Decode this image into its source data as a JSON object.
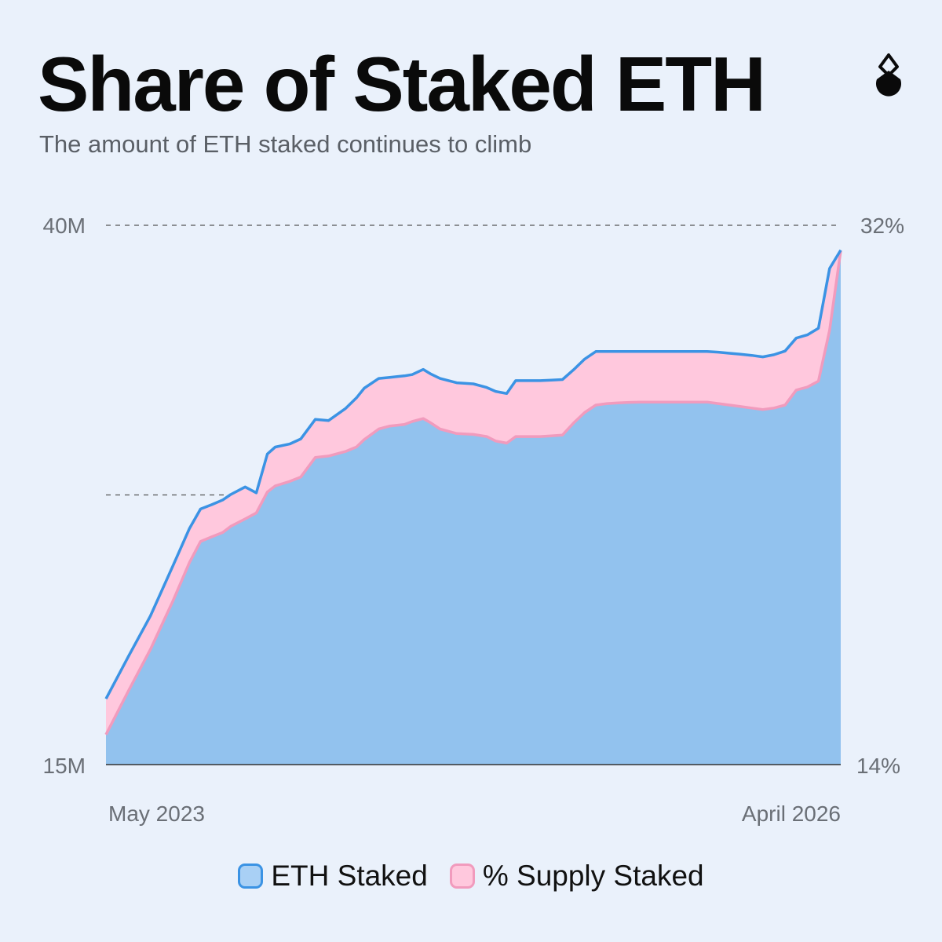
{
  "title": "Share of Staked ETH",
  "subtitle": "The amount of ETH staked continues to climb",
  "logo": {
    "icon": "staking-drop-icon"
  },
  "colors": {
    "background": "#eaf1fb",
    "eth_fill": "#92c2ee",
    "eth_line": "#3b93e4",
    "supply_fill": "#ffc8dd",
    "supply_line": "#f19bbd",
    "gridline": "#555555",
    "baseline": "#333333"
  },
  "chart_data": {
    "type": "area",
    "title": "Share of Staked ETH",
    "subtitle": "The amount of ETH staked continues to climb",
    "x_start_label": "May 2023",
    "x_end_label": "April 2026",
    "y_left": {
      "min": 15,
      "max": 40,
      "tick_labels": [
        "40M",
        "15M"
      ],
      "unit": "M ETH"
    },
    "y_right": {
      "min": 14,
      "max": 32,
      "tick_labels": [
        "32%",
        "14%"
      ],
      "unit": "%"
    },
    "gridlines_left": [
      40,
      27.5
    ],
    "x": [
      0,
      2,
      4,
      6,
      7.5,
      8.5,
      9.5,
      10.5,
      11.2,
      12.5,
      13.5,
      14.5,
      15.2,
      16.5,
      17.5,
      18.8,
      20,
      21.5,
      22.5,
      23.2,
      24.5,
      25.5,
      26.8,
      27.5,
      28.5,
      29.2,
      30,
      31.5,
      33,
      34.2,
      35,
      36,
      36.8,
      38,
      39,
      40,
      41,
      42,
      43,
      44,
      45,
      46,
      47,
      48,
      49,
      50,
      51,
      52,
      53,
      54,
      55,
      56,
      57,
      58,
      59,
      60,
      61,
      62,
      63,
      64,
      65,
      66
    ],
    "series": [
      {
        "name": "ETH Staked",
        "axis": "left",
        "values": [
          18.05,
          20.0,
          21.9,
          24.2,
          25.95,
          26.85,
          27.05,
          27.27,
          27.52,
          27.87,
          27.6,
          29.4,
          29.72,
          29.86,
          30.1,
          31.0,
          30.95,
          31.5,
          32.0,
          32.45,
          32.9,
          32.95,
          33.02,
          33.08,
          33.32,
          33.1,
          32.9,
          32.7,
          32.65,
          32.48,
          32.3,
          32.2,
          32.8,
          32.8,
          32.8,
          32.82,
          32.85,
          33.3,
          33.8,
          34.15,
          34.15,
          34.15,
          34.15,
          34.15,
          34.15,
          34.15,
          34.15,
          34.15,
          34.15,
          34.15,
          34.12,
          34.07,
          34.02,
          33.97,
          33.9,
          34.0,
          34.17,
          34.77,
          34.92,
          35.23,
          38.0,
          38.85
        ]
      },
      {
        "name": "% Supply Staked",
        "axis": "right",
        "values": [
          15.0,
          16.45,
          17.85,
          19.45,
          20.75,
          21.45,
          21.6,
          21.75,
          21.95,
          22.2,
          22.4,
          23.1,
          23.3,
          23.45,
          23.6,
          24.25,
          24.3,
          24.45,
          24.6,
          24.85,
          25.2,
          25.3,
          25.35,
          25.45,
          25.55,
          25.4,
          25.2,
          25.05,
          25.02,
          24.95,
          24.8,
          24.73,
          24.95,
          24.95,
          24.95,
          24.97,
          25.0,
          25.4,
          25.75,
          26.0,
          26.05,
          26.07,
          26.09,
          26.1,
          26.1,
          26.1,
          26.1,
          26.1,
          26.1,
          26.1,
          26.05,
          26.0,
          25.95,
          25.9,
          25.85,
          25.9,
          26.0,
          26.5,
          26.6,
          26.8,
          28.5,
          31.15
        ]
      }
    ]
  },
  "legend": {
    "eth_label": "ETH Staked",
    "supply_label": "% Supply Staked"
  }
}
